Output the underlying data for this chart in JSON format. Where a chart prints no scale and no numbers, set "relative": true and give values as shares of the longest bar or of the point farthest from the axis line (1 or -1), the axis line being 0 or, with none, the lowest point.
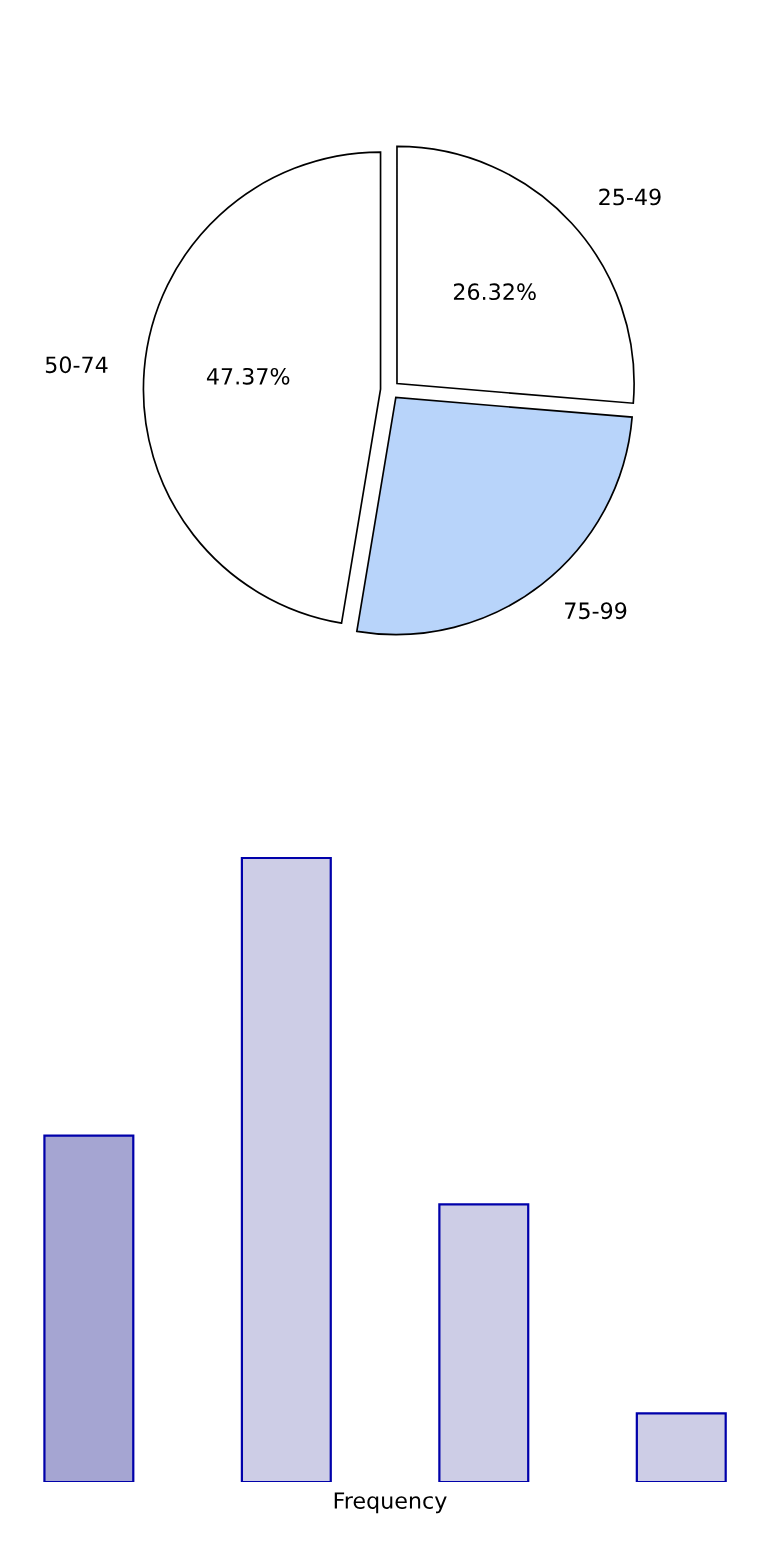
{
  "chart_data": [
    {
      "type": "pie",
      "categories": [
        "25-49",
        "75-99",
        "50-74"
      ],
      "values": [
        26.32,
        26.31,
        47.37
      ],
      "colors": [
        "#ffffff",
        "#b8d4fa",
        "#ffffff"
      ],
      "value_labels": [
        "26.32%",
        null,
        "47.37%"
      ]
    },
    {
      "type": "bar",
      "relative": true,
      "categories": [
        null,
        null,
        null,
        null
      ],
      "values": [
        0.555,
        1,
        0.445,
        0.11
      ],
      "colors": [
        "#a5a5d2",
        "#cdcde6",
        "#cdcde6",
        "#cdcde6"
      ],
      "xlabel": "Frequency"
    }
  ]
}
